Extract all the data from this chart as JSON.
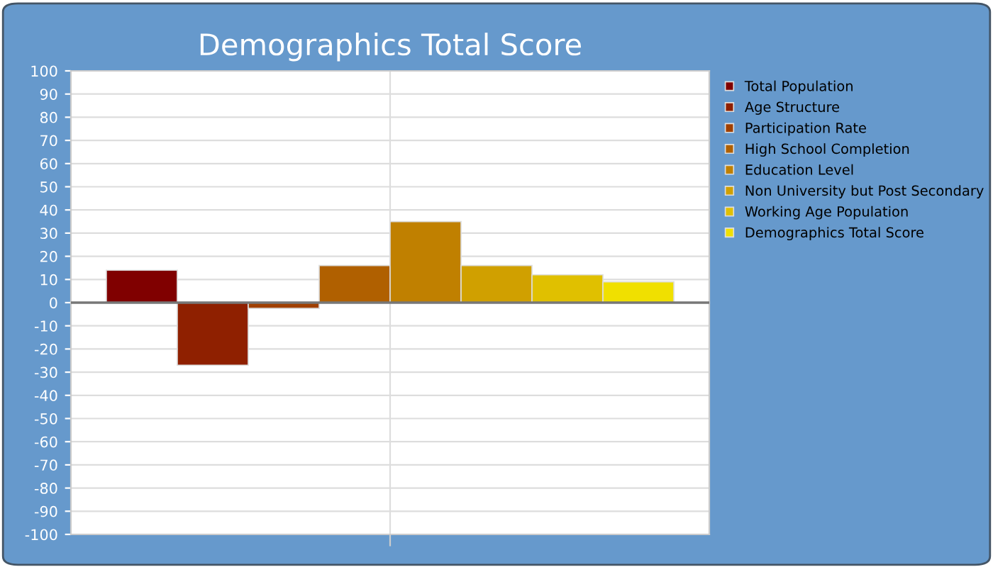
{
  "chart_data": {
    "type": "bar",
    "title": "Demographics Total Score",
    "categories": [
      null
    ],
    "series": [
      {
        "name": "Total Population",
        "color": "#800000",
        "values": [
          14
        ]
      },
      {
        "name": "Age Structure",
        "color": "#8f2000",
        "values": [
          -27
        ]
      },
      {
        "name": "Participation Rate",
        "color": "#a04000",
        "values": [
          -2.5
        ]
      },
      {
        "name": "High School Completion",
        "color": "#b06000",
        "values": [
          16
        ]
      },
      {
        "name": "Education Level",
        "color": "#c08000",
        "values": [
          35
        ]
      },
      {
        "name": "Non University but Post Secondary",
        "color": "#d0a000",
        "values": [
          16
        ]
      },
      {
        "name": "Working Age Population",
        "color": "#e0c000",
        "values": [
          12
        ]
      },
      {
        "name": "Demographics Total Score",
        "color": "#f0e000",
        "values": [
          9
        ]
      }
    ],
    "ylim": [
      -100,
      100
    ],
    "yticks": [
      -100,
      -90,
      -80,
      -70,
      -60,
      -50,
      -40,
      -30,
      -20,
      -10,
      0,
      10,
      20,
      30,
      40,
      50,
      60,
      70,
      80,
      90,
      100
    ],
    "grid": true,
    "legend": "right"
  }
}
